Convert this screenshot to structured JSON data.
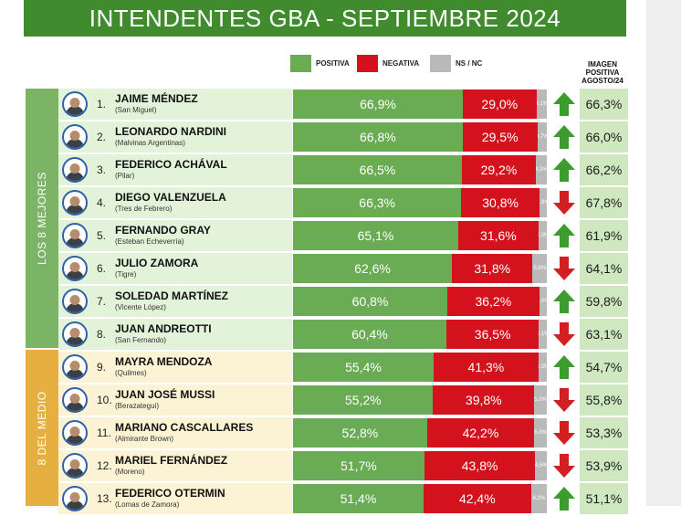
{
  "header": {
    "title": "INTENDENTES GBA - SEPTIEMBRE 2024"
  },
  "legend": {
    "positive": "POSITIVA",
    "negative": "NEGATIVA",
    "nsnc": "NS / NC"
  },
  "image_column_title": [
    "IMAGEN",
    "POSITIVA",
    "AGOSTO/24"
  ],
  "sections": [
    {
      "label": "LOS 8 MEJORES",
      "color": "#7bb466",
      "row_bg": "#e3f3da"
    },
    {
      "label": "8 DEL MEDIO",
      "color": "#e6b040",
      "row_bg": "#fbf3d3"
    }
  ],
  "colors": {
    "header": "#3f8b2e",
    "positive": "#6aac54",
    "negative": "#d4121d",
    "nsnc": "#b9b9b9",
    "arrow_up": "#3c9d2e",
    "arrow_down": "#d21f1f",
    "image_cell": "#cfe8c0"
  },
  "chart_data": {
    "type": "bar",
    "stacked": true,
    "title": "INTENDENTES GBA - SEPTIEMBRE 2024",
    "series_names": [
      "POSITIVA",
      "NEGATIVA",
      "NS / NC"
    ],
    "rows": [
      {
        "rank": "1.",
        "name": "JAIME MÉNDEZ",
        "place": "(San Miguel)",
        "positive": "66,9%",
        "negative": "29,0%",
        "nsnc": "4,1%",
        "trend": "up",
        "image_prev": "66,3%",
        "section": 0
      },
      {
        "rank": "2.",
        "name": "LEONARDO NARDINI",
        "place": "(Malvinas Argentinas)",
        "positive": "66,8%",
        "negative": "29,5%",
        "nsnc": "3,7%",
        "trend": "up",
        "image_prev": "66,0%",
        "section": 0
      },
      {
        "rank": "3.",
        "name": "FEDERICO ACHÁVAL",
        "place": "(Pilar)",
        "positive": "66,5%",
        "negative": "29,2%",
        "nsnc": "4,3%",
        "trend": "up",
        "image_prev": "66,2%",
        "section": 0
      },
      {
        "rank": "4.",
        "name": "DIEGO VALENZUELA",
        "place": "(Tres de Febrero)",
        "positive": "66,3%",
        "negative": "30,8%",
        "nsnc": "2,9%",
        "trend": "down",
        "image_prev": "67,8%",
        "section": 0
      },
      {
        "rank": "5.",
        "name": "FERNANDO GRAY",
        "place": "(Esteban Echeverría)",
        "positive": "65,1%",
        "negative": "31,6%",
        "nsnc": "3,3%",
        "trend": "up",
        "image_prev": "61,9%",
        "section": 0
      },
      {
        "rank": "6.",
        "name": "JULIO ZAMORA",
        "place": "(Tigre)",
        "positive": "62,6%",
        "negative": "31,8%",
        "nsnc": "5,6%",
        "trend": "down",
        "image_prev": "64,1%",
        "section": 0
      },
      {
        "rank": "7.",
        "name": "SOLEDAD MARTÍNEZ",
        "place": "(Vicente López)",
        "positive": "60,8%",
        "negative": "36,2%",
        "nsnc": "3,0%",
        "trend": "up",
        "image_prev": "59,8%",
        "section": 0
      },
      {
        "rank": "8.",
        "name": "JUAN ANDREOTTI",
        "place": "(San Fernando)",
        "positive": "60,4%",
        "negative": "36,5%",
        "nsnc": "3,1%",
        "trend": "down",
        "image_prev": "63,1%",
        "section": 0
      },
      {
        "rank": "9.",
        "name": "MAYRA MENDOZA",
        "place": "(Quilmes)",
        "positive": "55,4%",
        "negative": "41,3%",
        "nsnc": "3,3%",
        "trend": "up",
        "image_prev": "54,7%",
        "section": 1
      },
      {
        "rank": "10.",
        "name": "JUAN JOSÉ MUSSI",
        "place": "(Berazategui)",
        "positive": "55,2%",
        "negative": "39,8%",
        "nsnc": "5,0%",
        "trend": "down",
        "image_prev": "55,8%",
        "section": 1
      },
      {
        "rank": "11.",
        "name": "MARIANO CASCALLARES",
        "place": "(Almirante Brown)",
        "positive": "52,8%",
        "negative": "42,2%",
        "nsnc": "5,0%",
        "trend": "down",
        "image_prev": "53,3%",
        "section": 1
      },
      {
        "rank": "12.",
        "name": "MARIEL FERNÁNDEZ",
        "place": "(Moreno)",
        "positive": "51,7%",
        "negative": "43,8%",
        "nsnc": "4,5%",
        "trend": "down",
        "image_prev": "53,9%",
        "section": 1
      },
      {
        "rank": "13.",
        "name": "FEDERICO OTERMIN",
        "place": "(Lomas de Zamora)",
        "positive": "51,4%",
        "negative": "42,4%",
        "nsnc": "6,2%",
        "trend": "up",
        "image_prev": "51,1%",
        "section": 1
      }
    ]
  }
}
